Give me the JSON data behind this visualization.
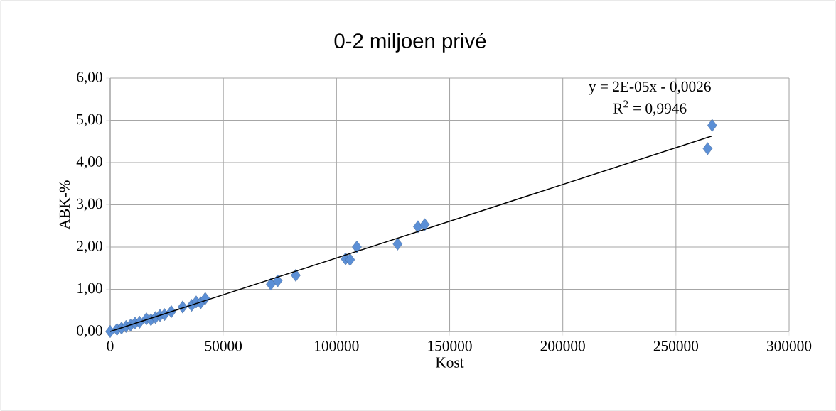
{
  "chart_data": {
    "type": "scatter",
    "title": "0-2 miljoen privé",
    "xlabel": "Kost",
    "ylabel": "ABK-%",
    "series": [
      {
        "color": "#5b8fd6",
        "marker": "diamond",
        "x": [
          0,
          500,
          1000,
          2000,
          3000,
          5000,
          7000,
          9000,
          11000,
          13000,
          16000,
          18000,
          20000,
          22000,
          24000,
          27000,
          32000,
          36000,
          38000,
          40000,
          42000,
          71000,
          74000,
          82000,
          104000,
          106000,
          109000,
          127000,
          136000,
          139000,
          264000,
          266000
        ],
        "values": [
          0,
          null,
          null,
          null,
          0.05,
          0.08,
          0.12,
          0.15,
          0.2,
          0.22,
          0.3,
          0.28,
          0.33,
          0.38,
          0.4,
          0.47,
          0.58,
          0.62,
          0.7,
          0.68,
          0.78,
          1.12,
          1.2,
          1.33,
          1.72,
          1.7,
          2.0,
          2.07,
          2.48,
          2.53,
          4.33,
          4.88
        ]
      },
      {
        "type": "line",
        "color": "#000000",
        "marker": "none",
        "x": [
          0,
          266000
        ],
        "values": [
          0,
          4.63
        ]
      }
    ],
    "annotations": [
      "y = 2E-05x - 0,0026",
      "R$^{2}$ = 0,9946"
    ],
    "xlim": [
      0,
      300000
    ],
    "xticks": [
      0,
      50000,
      100000,
      150000,
      200000,
      250000,
      300000
    ],
    "ylim": [
      0,
      6
    ],
    "yticks": [
      {
        "value": 0,
        "label": "0,00"
      },
      {
        "value": 1,
        "label": "1,00"
      },
      {
        "value": 2,
        "label": "2,00"
      },
      {
        "value": 3,
        "label": "3,00"
      },
      {
        "value": 4,
        "label": "4,00"
      },
      {
        "value": 5,
        "label": "5,00"
      },
      {
        "value": 6,
        "label": "6,00"
      }
    ],
    "grid": true
  }
}
